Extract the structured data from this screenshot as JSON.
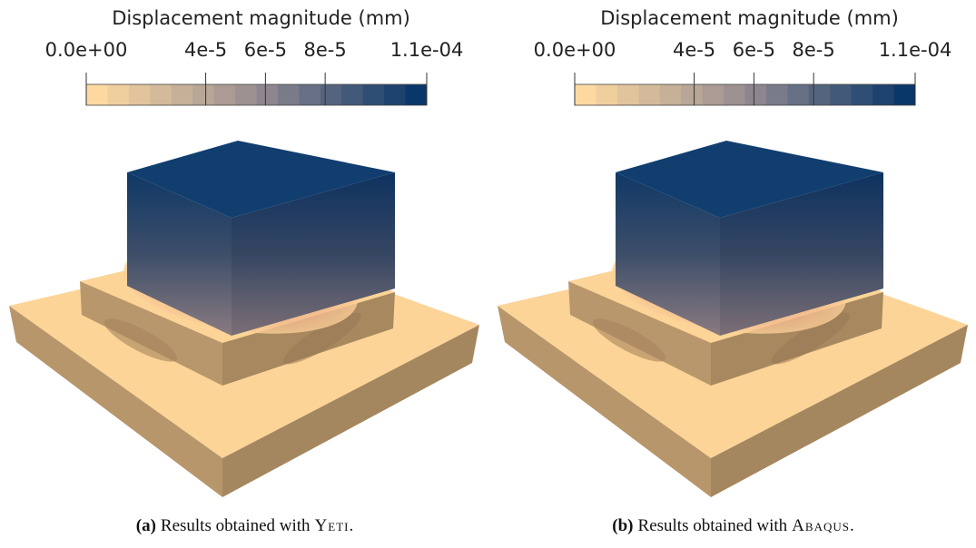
{
  "panels": [
    {
      "colorbar": {
        "title": "Displacement magnitude (mm)",
        "ticks": [
          {
            "value": 0,
            "label": "0.0e+00"
          },
          {
            "value": 4e-05,
            "label": "4e-5"
          },
          {
            "value": 6e-05,
            "label": "6e-5"
          },
          {
            "value": 8e-05,
            "label": "8e-5"
          },
          {
            "value": 0.000114,
            "label": "1.1e-04"
          }
        ]
      },
      "caption": {
        "label": "(a)",
        "text": "Results obtained with",
        "software": "Yeti."
      }
    },
    {
      "colorbar": {
        "title": "Displacement magnitude (mm)",
        "ticks": [
          {
            "value": 0,
            "label": "0.0e+00"
          },
          {
            "value": 4e-05,
            "label": "4e-5"
          },
          {
            "value": 6e-05,
            "label": "6e-5"
          },
          {
            "value": 8e-05,
            "label": "8e-5"
          },
          {
            "value": 0.000114,
            "label": "1.1e-04"
          }
        ]
      },
      "caption": {
        "label": "(b)",
        "text": "Results obtained with",
        "software": "Abaqus."
      }
    }
  ]
}
